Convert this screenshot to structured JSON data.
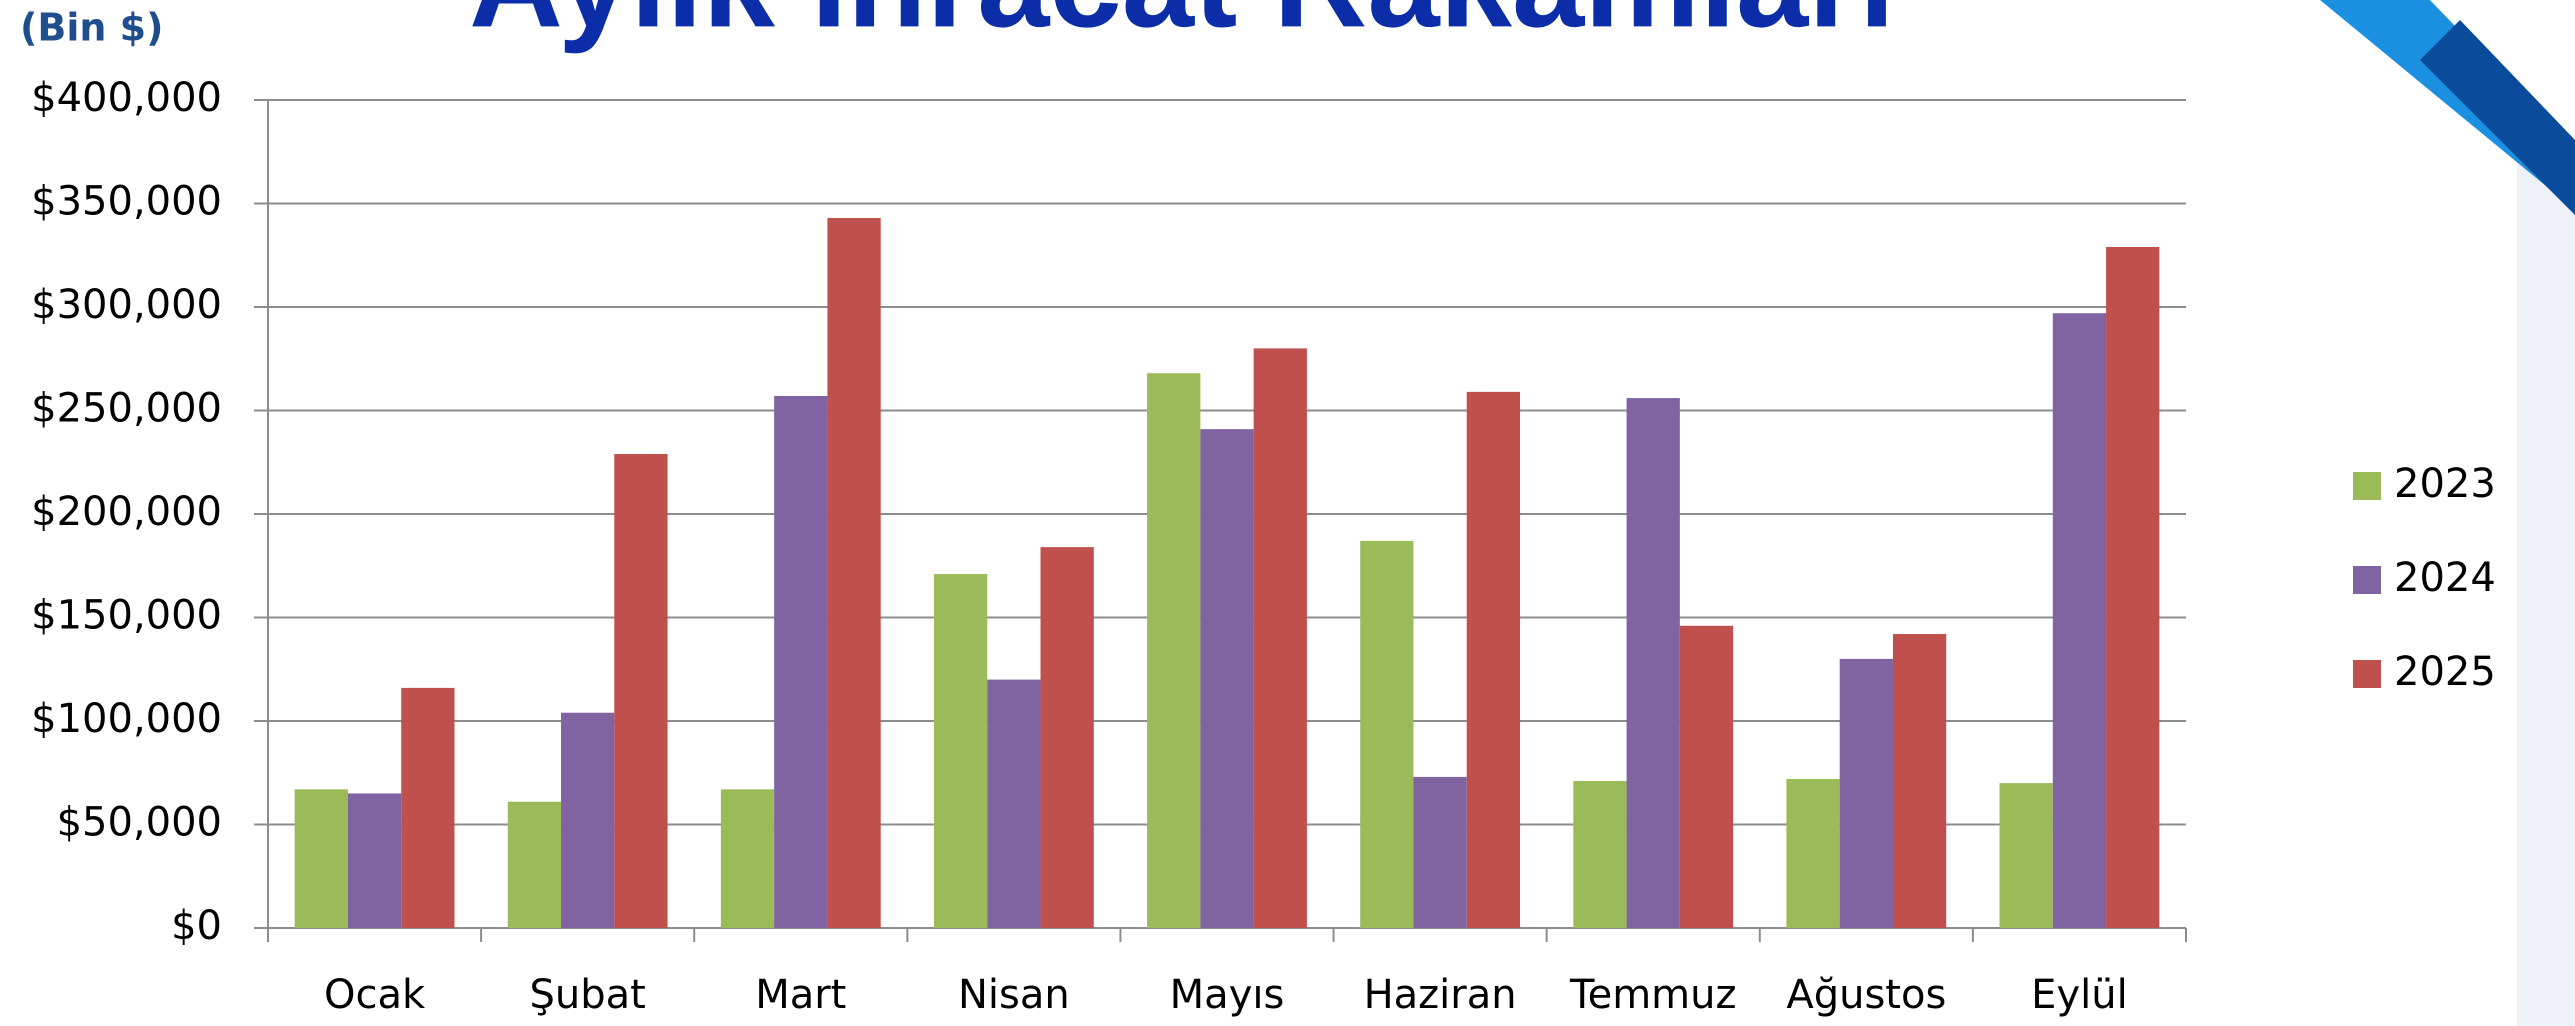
{
  "chart_data": {
    "type": "bar",
    "title": "Aylık İhracat Rakamları",
    "y_label": "(Bin $)",
    "categories": [
      "Ocak",
      "Şubat",
      "Mart",
      "Nisan",
      "Mayıs",
      "Haziran",
      "Temmuz",
      "Ağustos",
      "Eylül"
    ],
    "series": [
      {
        "name": "2023",
        "color": "#9bbb59",
        "values": [
          67000,
          61000,
          67000,
          171000,
          268000,
          187000,
          71000,
          72000,
          70000
        ]
      },
      {
        "name": "2024",
        "color": "#8064a2",
        "values": [
          65000,
          104000,
          257000,
          120000,
          241000,
          73000,
          256000,
          130000,
          297000
        ]
      },
      {
        "name": "2025",
        "color": "#c0504d",
        "values": [
          116000,
          229000,
          343000,
          184000,
          280000,
          259000,
          146000,
          142000,
          329000
        ]
      }
    ],
    "ylim": [
      0,
      400000
    ],
    "yticks": [
      {
        "value": 0,
        "label": "$0"
      },
      {
        "value": 50000,
        "label": "$50,000"
      },
      {
        "value": 100000,
        "label": "$100,000"
      },
      {
        "value": 150000,
        "label": "$150,000"
      },
      {
        "value": 200000,
        "label": "$200,000"
      },
      {
        "value": 250000,
        "label": "$250,000"
      },
      {
        "value": 300000,
        "label": "$300,000"
      },
      {
        "value": 350000,
        "label": "$350,000"
      },
      {
        "value": 400000,
        "label": "$400,000"
      }
    ],
    "grid": true,
    "legend": "right"
  }
}
